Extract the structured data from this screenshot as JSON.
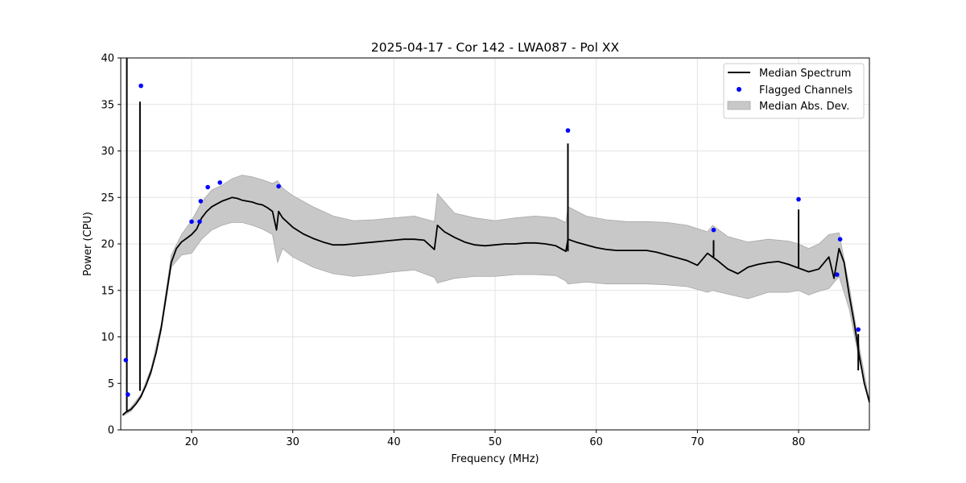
{
  "chart_data": {
    "type": "line",
    "title": "2025-04-17 - Cor 142 - LWA087 - Pol XX",
    "xlabel": "Frequency (MHz)",
    "ylabel": "Power (CPU)",
    "xlim": [
      13.0,
      87.0
    ],
    "ylim": [
      0,
      40
    ],
    "xticks": [
      20,
      30,
      40,
      50,
      60,
      70,
      80
    ],
    "xtick_labels": [
      "20",
      "30",
      "40",
      "50",
      "60",
      "70",
      "80"
    ],
    "yticks": [
      0,
      5,
      10,
      15,
      20,
      25,
      30,
      35,
      40
    ],
    "ytick_labels": [
      "0",
      "5",
      "10",
      "15",
      "20",
      "25",
      "30",
      "35",
      "40"
    ],
    "grid": true,
    "legend_position": "top-right",
    "legend": [
      "Median Spectrum",
      "Flagged Channels",
      "Median Abs. Dev."
    ],
    "series": [
      {
        "name": "Median Spectrum",
        "color": "#000000",
        "x": [
          13.2,
          13.5,
          14.0,
          14.5,
          15.0,
          15.5,
          16.0,
          16.5,
          17.0,
          17.5,
          18.0,
          18.5,
          19.0,
          19.5,
          20.0,
          20.5,
          21.0,
          21.5,
          22.0,
          22.5,
          23.0,
          23.5,
          24.0,
          24.5,
          25.0,
          25.5,
          26.0,
          26.5,
          27.0,
          27.5,
          28.0,
          28.4,
          28.6,
          29.0,
          29.5,
          30.0,
          31.0,
          32.0,
          33.0,
          34.0,
          35.0,
          36.0,
          37.0,
          38.0,
          39.0,
          40.0,
          41.0,
          42.0,
          43.0,
          44.0,
          44.3,
          45.0,
          46.0,
          47.0,
          48.0,
          49.0,
          50.0,
          51.0,
          52.0,
          53.0,
          54.0,
          55.0,
          56.0,
          57.0,
          57.2,
          58.0,
          59.0,
          60.0,
          61.0,
          62.0,
          63.0,
          64.0,
          65.0,
          66.0,
          67.0,
          68.0,
          69.0,
          70.0,
          71.0,
          72.0,
          73.0,
          74.0,
          75.0,
          76.0,
          77.0,
          78.0,
          79.0,
          80.0,
          81.0,
          82.0,
          83.0,
          83.5,
          84.0,
          84.5,
          85.0,
          85.5,
          86.0,
          86.5,
          87.0
        ],
        "values": [
          1.6,
          1.9,
          2.2,
          2.8,
          3.6,
          4.8,
          6.3,
          8.3,
          11.0,
          14.5,
          18.0,
          19.5,
          20.2,
          20.6,
          21.0,
          21.6,
          22.8,
          23.5,
          24.0,
          24.3,
          24.6,
          24.8,
          25.0,
          24.9,
          24.7,
          24.6,
          24.5,
          24.3,
          24.2,
          23.9,
          23.5,
          21.5,
          23.5,
          22.8,
          22.3,
          21.8,
          21.1,
          20.6,
          20.2,
          19.9,
          19.9,
          20.0,
          20.1,
          20.2,
          20.3,
          20.4,
          20.5,
          20.5,
          20.4,
          19.4,
          22.0,
          21.3,
          20.7,
          20.2,
          19.9,
          19.8,
          19.9,
          20.0,
          20.0,
          20.1,
          20.1,
          20.0,
          19.8,
          19.2,
          20.5,
          20.2,
          19.9,
          19.6,
          19.4,
          19.3,
          19.3,
          19.3,
          19.3,
          19.1,
          18.8,
          18.5,
          18.2,
          17.7,
          19.0,
          18.2,
          17.3,
          16.8,
          17.5,
          17.8,
          18.0,
          18.1,
          17.8,
          17.4,
          17.0,
          17.3,
          18.6,
          16.3,
          19.5,
          18.0,
          14.5,
          11.5,
          8.0,
          5.0,
          3.0
        ]
      }
    ],
    "spikes": [
      {
        "x": 13.6,
        "from": 2.0,
        "to": 40.0
      },
      {
        "x": 14.9,
        "from": 4.2,
        "to": 35.3
      },
      {
        "x": 57.2,
        "from": 19.2,
        "to": 30.8
      },
      {
        "x": 80.0,
        "from": 17.5,
        "to": 23.7
      },
      {
        "x": 71.6,
        "from": 18.6,
        "to": 20.4
      },
      {
        "x": 85.9,
        "from": 6.4,
        "to": 10.3
      }
    ],
    "mad_band": {
      "name": "Median Abs. Dev.",
      "color": "#c8c8c8",
      "x": [
        13.2,
        14.0,
        15.0,
        16.0,
        17.0,
        18.0,
        19.0,
        20.0,
        21.0,
        22.0,
        23.0,
        24.0,
        25.0,
        26.0,
        27.0,
        28.0,
        28.5,
        29.0,
        30.0,
        32.0,
        34.0,
        36.0,
        38.0,
        40.0,
        42.0,
        44.0,
        44.3,
        46.0,
        48.0,
        50.0,
        52.0,
        54.0,
        56.0,
        57.0,
        57.2,
        59.0,
        61.0,
        63.0,
        65.0,
        67.0,
        69.0,
        71.0,
        71.5,
        73.0,
        75.0,
        77.0,
        79.0,
        80.0,
        81.0,
        82.0,
        83.0,
        84.0,
        85.0,
        86.0,
        87.0
      ],
      "upper": [
        1.7,
        2.4,
        3.8,
        6.6,
        11.4,
        18.8,
        21.0,
        22.5,
        24.5,
        25.8,
        26.3,
        27.0,
        27.4,
        27.2,
        26.9,
        26.5,
        26.8,
        26.0,
        25.2,
        24.0,
        23.0,
        22.5,
        22.6,
        22.8,
        23.0,
        22.4,
        25.4,
        23.3,
        22.8,
        22.5,
        22.8,
        23.0,
        22.8,
        22.3,
        24.0,
        23.0,
        22.6,
        22.4,
        22.4,
        22.3,
        22.0,
        21.3,
        22.0,
        20.8,
        20.2,
        20.5,
        20.3,
        20.0,
        19.5,
        20.0,
        21.0,
        21.2,
        15.5,
        9.0,
        3.0
      ],
      "lower": [
        1.5,
        2.0,
        3.4,
        6.0,
        10.6,
        17.5,
        18.8,
        19.0,
        20.5,
        21.5,
        22.0,
        22.3,
        22.3,
        22.0,
        21.6,
        21.0,
        18.0,
        19.5,
        18.6,
        17.5,
        16.8,
        16.5,
        16.7,
        17.0,
        17.2,
        16.4,
        15.8,
        16.3,
        16.5,
        16.5,
        16.7,
        16.7,
        16.6,
        16.0,
        15.7,
        15.9,
        15.7,
        15.7,
        15.7,
        15.6,
        15.4,
        14.8,
        15.0,
        14.6,
        14.1,
        14.8,
        14.8,
        15.0,
        14.5,
        14.9,
        15.2,
        16.5,
        13.0,
        7.5,
        2.8
      ]
    },
    "flagged": {
      "name": "Flagged Channels",
      "color": "#0000ff",
      "x": [
        13.5,
        13.7,
        15.0,
        20.0,
        20.8,
        20.9,
        21.6,
        22.8,
        28.6,
        57.2,
        71.6,
        80.0,
        83.8,
        84.1,
        85.9
      ],
      "y": [
        7.5,
        3.8,
        37.0,
        22.4,
        22.4,
        24.6,
        26.1,
        26.6,
        26.2,
        32.2,
        21.5,
        24.8,
        16.7,
        20.5,
        10.8
      ]
    }
  }
}
